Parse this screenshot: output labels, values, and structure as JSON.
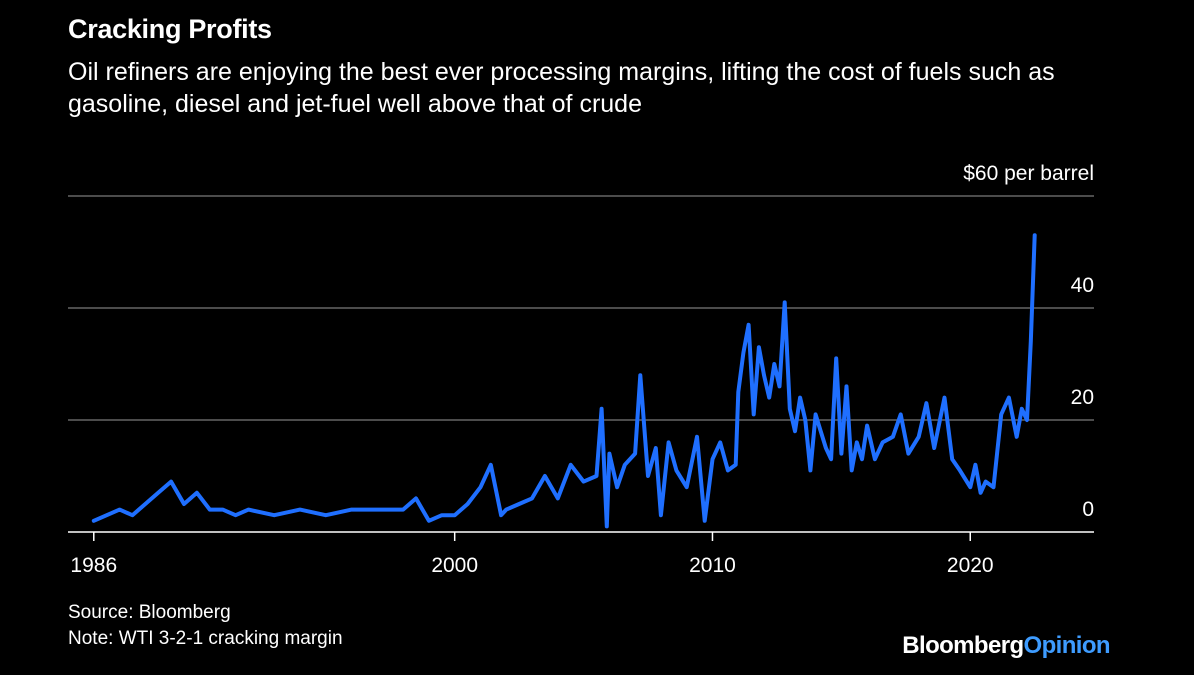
{
  "title": "Cracking Profits",
  "subtitle": "Oil refiners are enjoying the best ever processing margins, lifting the cost of fuels such as gasoline, diesel and jet-fuel well above that of crude",
  "footer": {
    "source": "Source: Bloomberg",
    "note": "Note: WTI 3-2-1 cracking margin"
  },
  "logo": {
    "brand": "Bloomberg",
    "section": "Opinion"
  },
  "colors": {
    "background": "#000000",
    "line": "#1f6fff",
    "grid": "#7a7a7a",
    "text": "#ffffff",
    "logo_accent": "#3e9cff"
  },
  "chart_data": {
    "type": "line",
    "title": "Cracking Profits",
    "unit_label": "$60 per barrel",
    "xlabel": "",
    "ylabel": "",
    "xlim": [
      1985.0,
      2024.8
    ],
    "ylim": [
      0,
      60
    ],
    "grid": true,
    "y_ticks": [
      {
        "value": 0,
        "label": "0"
      },
      {
        "value": 20,
        "label": "20"
      },
      {
        "value": 40,
        "label": "40"
      },
      {
        "value": 60,
        "label": "$60 per barrel"
      }
    ],
    "x_ticks": [
      {
        "value": 1986,
        "label": "1986"
      },
      {
        "value": 2000,
        "label": "2000"
      },
      {
        "value": 2010,
        "label": "2010"
      },
      {
        "value": 2020,
        "label": "2020"
      }
    ],
    "series": [
      {
        "name": "WTI 3-2-1 cracking margin",
        "x": [
          1986.0,
          1986.5,
          1987.0,
          1987.5,
          1988.0,
          1988.5,
          1989.0,
          1989.5,
          1990.0,
          1990.5,
          1991.0,
          1991.5,
          1992.0,
          1993.0,
          1994.0,
          1995.0,
          1996.0,
          1997.0,
          1998.0,
          1998.5,
          1999.0,
          1999.5,
          2000.0,
          2000.5,
          2001.0,
          2001.4,
          2001.8,
          2002.0,
          2002.5,
          2003.0,
          2003.5,
          2004.0,
          2004.5,
          2005.0,
          2005.5,
          2005.7,
          2005.9,
          2006.0,
          2006.3,
          2006.6,
          2007.0,
          2007.2,
          2007.5,
          2007.8,
          2008.0,
          2008.3,
          2008.6,
          2009.0,
          2009.4,
          2009.7,
          2010.0,
          2010.3,
          2010.6,
          2010.9,
          2011.0,
          2011.2,
          2011.4,
          2011.6,
          2011.8,
          2012.0,
          2012.2,
          2012.4,
          2012.6,
          2012.8,
          2013.0,
          2013.2,
          2013.4,
          2013.6,
          2013.8,
          2014.0,
          2014.2,
          2014.4,
          2014.6,
          2014.8,
          2015.0,
          2015.2,
          2015.4,
          2015.6,
          2015.8,
          2016.0,
          2016.3,
          2016.6,
          2017.0,
          2017.3,
          2017.6,
          2018.0,
          2018.3,
          2018.6,
          2019.0,
          2019.3,
          2019.6,
          2020.0,
          2020.2,
          2020.4,
          2020.6,
          2020.9,
          2021.2,
          2021.5,
          2021.8,
          2022.0,
          2022.2,
          2022.35,
          2022.5
        ],
        "values": [
          2,
          3,
          4,
          3,
          5,
          7,
          9,
          5,
          7,
          4,
          4,
          3,
          4,
          3,
          4,
          3,
          4,
          4,
          4,
          6,
          2,
          3,
          3,
          5,
          8,
          12,
          3,
          4,
          5,
          6,
          10,
          6,
          12,
          9,
          10,
          22,
          1,
          14,
          8,
          12,
          14,
          28,
          10,
          15,
          3,
          16,
          11,
          8,
          17,
          2,
          13,
          16,
          11,
          12,
          25,
          32,
          37,
          21,
          33,
          28,
          24,
          30,
          26,
          41,
          22,
          18,
          24,
          20,
          11,
          21,
          18,
          15,
          13,
          31,
          14,
          26,
          11,
          16,
          13,
          19,
          13,
          16,
          17,
          21,
          14,
          17,
          23,
          15,
          24,
          13,
          11,
          8,
          12,
          7,
          9,
          8,
          21,
          24,
          17,
          22,
          20,
          34,
          53
        ]
      }
    ]
  }
}
